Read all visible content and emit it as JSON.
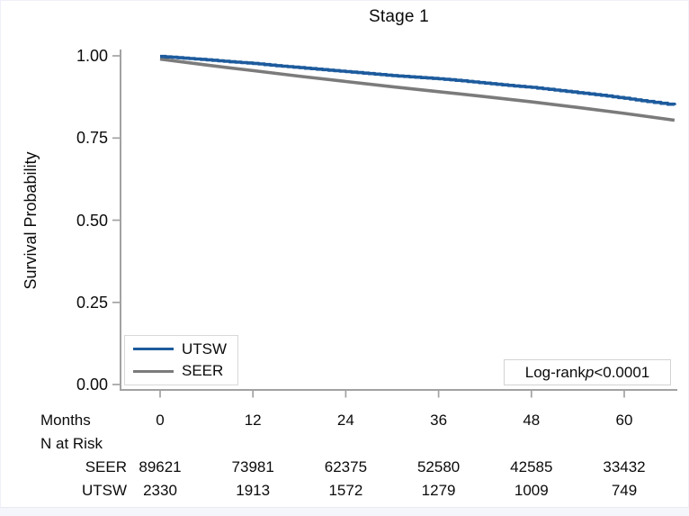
{
  "chart_data": {
    "type": "line",
    "subtype": "kaplan-meier-survival",
    "title": "Stage 1",
    "xlabel": "Months",
    "ylabel": "Survival Probability",
    "xlim": [
      0,
      67
    ],
    "ylim": [
      0.0,
      1.0
    ],
    "grid": false,
    "legend_position": "inside-bottom-left",
    "axis_color": "#a2a2a2",
    "xticks": [
      0,
      12,
      24,
      36,
      48,
      60
    ],
    "yticks": [
      {
        "value": 0.0,
        "label": "0.00"
      },
      {
        "value": 0.25,
        "label": "0.25"
      },
      {
        "value": 0.5,
        "label": "0.50"
      },
      {
        "value": 0.75,
        "label": "0.75"
      },
      {
        "value": 1.0,
        "label": "1.00"
      }
    ],
    "series": [
      {
        "name": "UTSW",
        "color": "#1d5b9d",
        "stepped": true,
        "x": [
          0,
          3,
          6,
          9,
          12,
          15,
          18,
          21,
          24,
          27,
          30,
          33,
          36,
          39,
          42,
          45,
          48,
          51,
          54,
          57,
          60,
          63,
          66.5
        ],
        "y": [
          0.998,
          0.993,
          0.988,
          0.982,
          0.977,
          0.97,
          0.964,
          0.958,
          0.952,
          0.946,
          0.94,
          0.935,
          0.93,
          0.924,
          0.917,
          0.91,
          0.904,
          0.896,
          0.888,
          0.88,
          0.871,
          0.861,
          0.85
        ]
      },
      {
        "name": "SEER",
        "color": "#7b7b7b",
        "stepped": false,
        "x": [
          0,
          6,
          12,
          18,
          24,
          30,
          36,
          42,
          48,
          54,
          60,
          66.5
        ],
        "y": [
          0.99,
          0.972,
          0.955,
          0.938,
          0.922,
          0.906,
          0.891,
          0.876,
          0.86,
          0.843,
          0.825,
          0.804
        ]
      }
    ],
    "annotation": {
      "prefix": "Log-rank",
      "p_symbol": "p",
      "value": "<0.0001"
    },
    "risk_table": {
      "header_label": "Months",
      "section_label": "N at Risk",
      "columns": [
        "0",
        "12",
        "24",
        "36",
        "48",
        "60"
      ],
      "rows": [
        {
          "label": "SEER",
          "values": [
            "89621",
            "73981",
            "62375",
            "52580",
            "42585",
            "33432"
          ]
        },
        {
          "label": "UTSW",
          "values": [
            "2330",
            "1913",
            "1572",
            "1279",
            "1009",
            "749"
          ]
        }
      ]
    }
  }
}
